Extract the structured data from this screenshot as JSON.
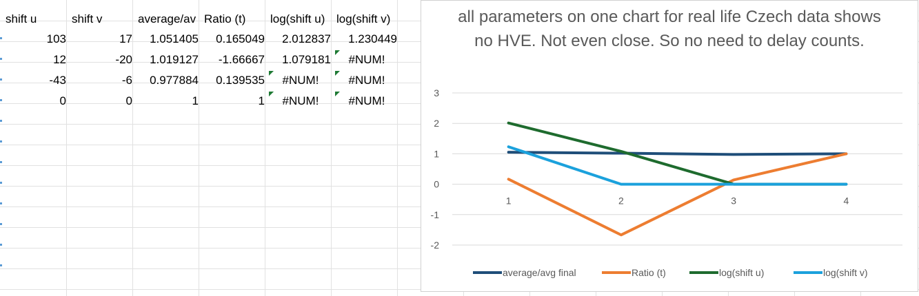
{
  "sheet": {
    "headers": [
      "shift u",
      "shift v",
      "average/av",
      "Ratio (t)",
      "log(shift u)",
      "log(shift v)"
    ],
    "rows": [
      [
        "103",
        "17",
        "1.051405",
        "0.165049",
        "2.012837",
        "1.230449"
      ],
      [
        "12",
        "-20",
        "1.019127",
        "-1.66667",
        "1.079181",
        "#NUM!"
      ],
      [
        "-43",
        "-6",
        "0.977884",
        "0.139535",
        "#NUM!",
        "#NUM!"
      ],
      [
        "0",
        "0",
        "1",
        "1",
        "#NUM!",
        "#NUM!"
      ]
    ]
  },
  "colors": {
    "average": "#1f4e79",
    "ratio": "#ed7d31",
    "log_u": "#1e6b2e",
    "log_v": "#1ba1dc",
    "gridline": "#d9d9d9",
    "text": "#595959"
  },
  "chart_data": {
    "type": "line",
    "title": "all parameters on one chart for real life Czech data shows no HVE. Not even close. So no need to delay counts.",
    "categories": [
      "1",
      "2",
      "3",
      "4"
    ],
    "series": [
      {
        "name": "average/avg final",
        "values": [
          1.051405,
          1.019127,
          0.977884,
          1
        ]
      },
      {
        "name": "Ratio (t)",
        "values": [
          0.165049,
          -1.66667,
          0.139535,
          1
        ]
      },
      {
        "name": "log(shift u)",
        "values": [
          2.012837,
          1.079181,
          0,
          0
        ]
      },
      {
        "name": "log(shift v)",
        "values": [
          1.230449,
          0,
          0,
          0
        ]
      }
    ],
    "ylim": [
      -2,
      3
    ],
    "yticks": [
      "3",
      "2",
      "1",
      "0",
      "-1",
      "-2"
    ],
    "grid": true,
    "legend": "bottom"
  }
}
